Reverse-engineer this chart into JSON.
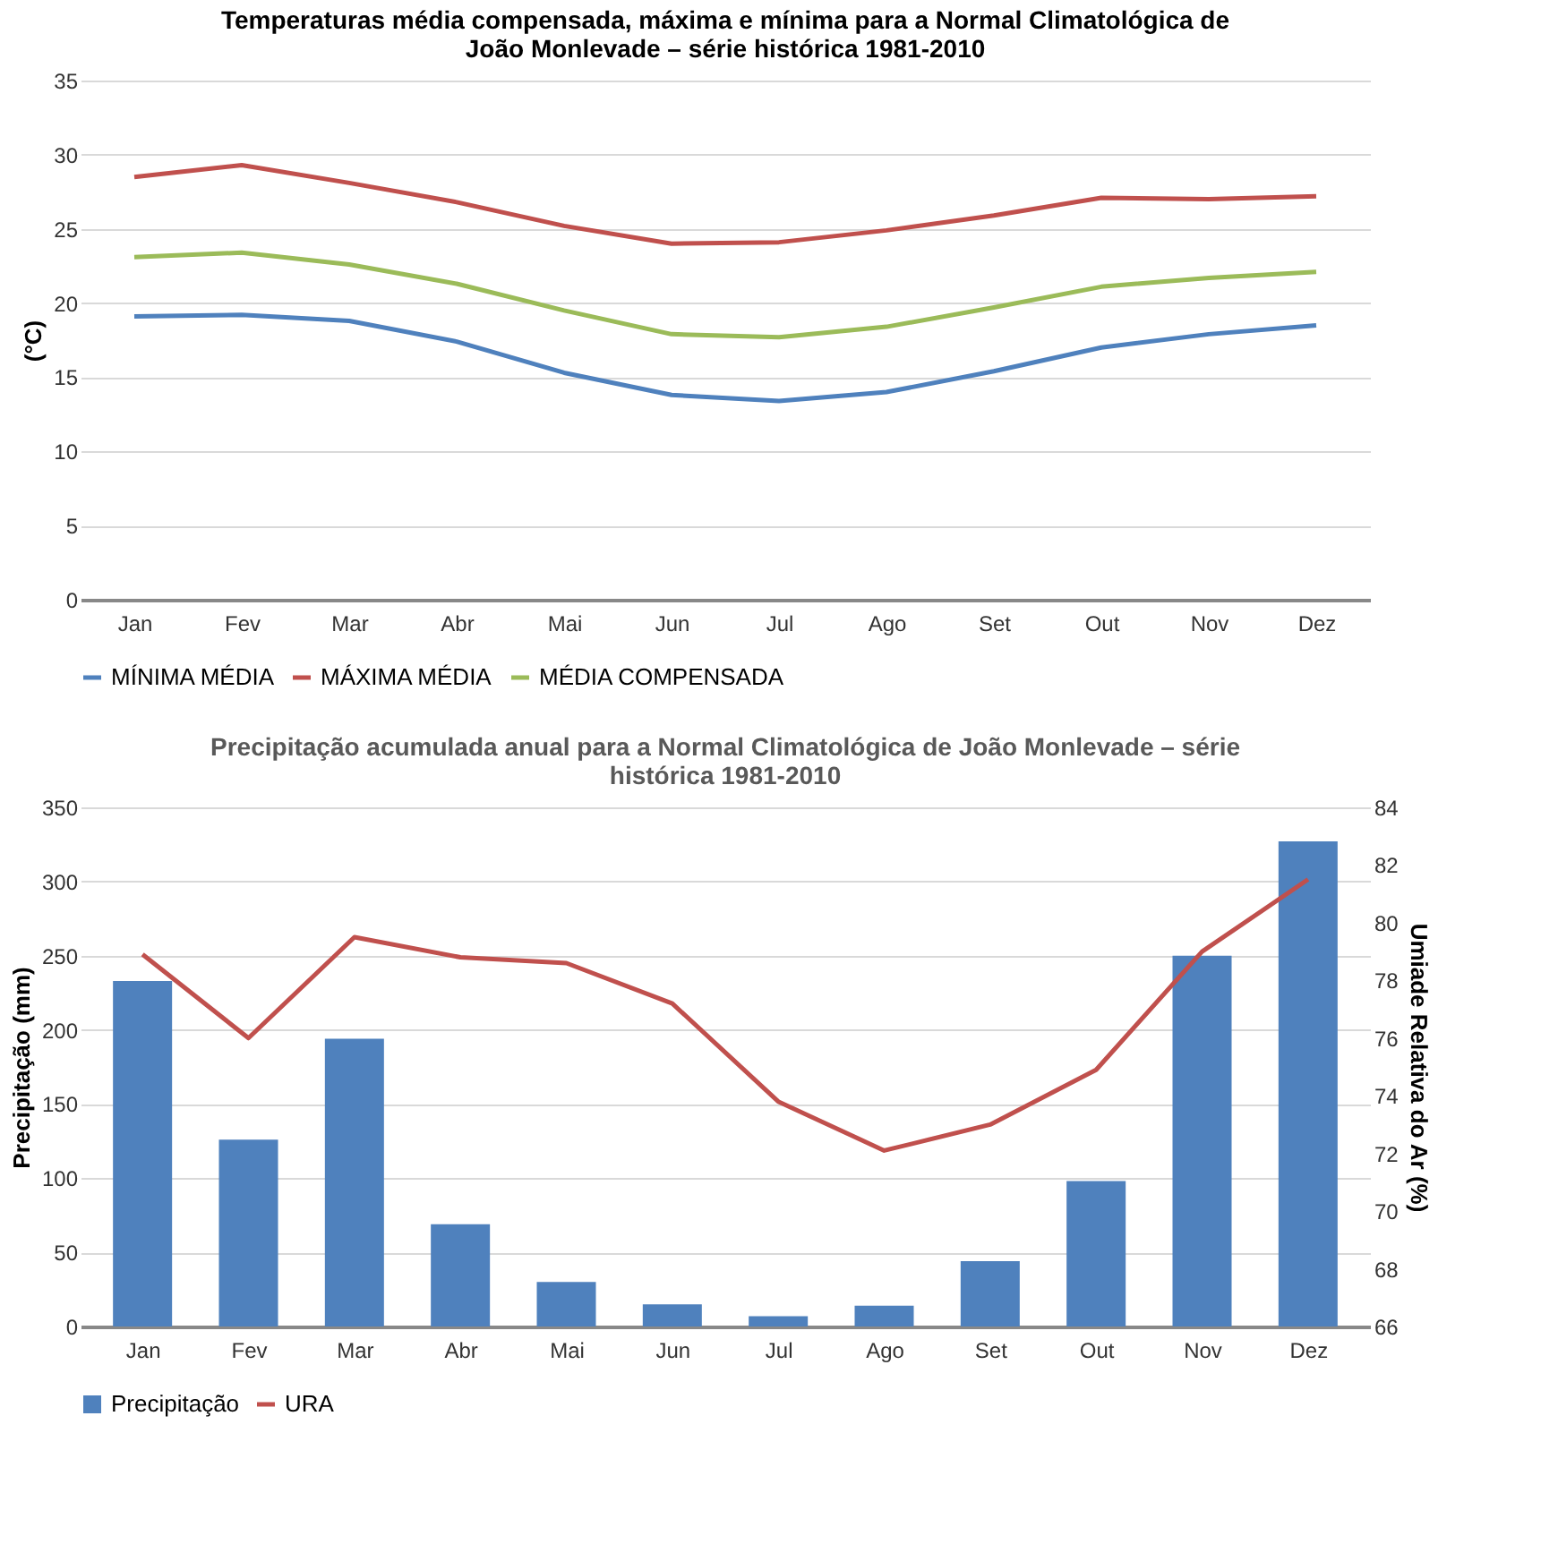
{
  "chart_data": [
    {
      "type": "line",
      "title": "Temperaturas média compensada, máxima e mínima para a Normal Climatológica de João Monlevade – série histórica 1981-2010",
      "ylabel": "(°C)",
      "categories": [
        "Jan",
        "Fev",
        "Mar",
        "Abr",
        "Mai",
        "Jun",
        "Jul",
        "Ago",
        "Set",
        "Out",
        "Nov",
        "Dez"
      ],
      "ylim": [
        0,
        35
      ],
      "yticks": [
        0,
        5,
        10,
        15,
        20,
        25,
        30,
        35
      ],
      "grid": "y",
      "legend": "bottom",
      "marker": "none",
      "series": [
        {
          "name": "MÍNIMA MÉDIA",
          "color": "#4f81bd",
          "values": [
            19.1,
            19.2,
            18.8,
            17.4,
            15.3,
            13.8,
            13.4,
            14.0,
            15.4,
            17.0,
            17.9,
            18.5
          ]
        },
        {
          "name": "MÁXIMA MÉDIA",
          "color": "#c0504d",
          "values": [
            28.5,
            29.3,
            28.1,
            26.8,
            25.2,
            24.0,
            24.1,
            24.9,
            25.9,
            27.1,
            27.0,
            27.2
          ]
        },
        {
          "name": "MÉDIA COMPENSADA",
          "color": "#9bbb59",
          "values": [
            23.1,
            23.4,
            22.6,
            21.3,
            19.5,
            17.9,
            17.7,
            18.4,
            19.7,
            21.1,
            21.7,
            22.1
          ]
        }
      ]
    },
    {
      "type": "bar",
      "title": "Precipitação acumulada anual para a Normal Climatológica de João Monlevade – série histórica 1981-2010",
      "ylabel": "Precipitação (mm)",
      "y2label": "Umiade Relativa do Ar (%)",
      "categories": [
        "Jan",
        "Fev",
        "Mar",
        "Abr",
        "Mai",
        "Jun",
        "Jul",
        "Ago",
        "Set",
        "Out",
        "Nov",
        "Dez"
      ],
      "ylim": [
        0,
        350
      ],
      "yticks": [
        0,
        50,
        100,
        150,
        200,
        250,
        300,
        350
      ],
      "y2lim": [
        66,
        84
      ],
      "y2ticks": [
        66,
        68,
        70,
        72,
        74,
        76,
        78,
        80,
        82,
        84
      ],
      "grid": "y",
      "legend": "bottom",
      "series": [
        {
          "name": "Precipitação",
          "color": "#4f81bd",
          "values": [
            233,
            126,
            194,
            69,
            30,
            15,
            7,
            14,
            44,
            98,
            250,
            327
          ]
        },
        {
          "name": "URA",
          "type": "line",
          "axis": "y2",
          "color": "#c0504d",
          "values": [
            78.9,
            76.0,
            79.5,
            78.8,
            78.6,
            77.2,
            73.8,
            72.1,
            73.0,
            74.9,
            79.0,
            81.5
          ]
        }
      ]
    }
  ]
}
